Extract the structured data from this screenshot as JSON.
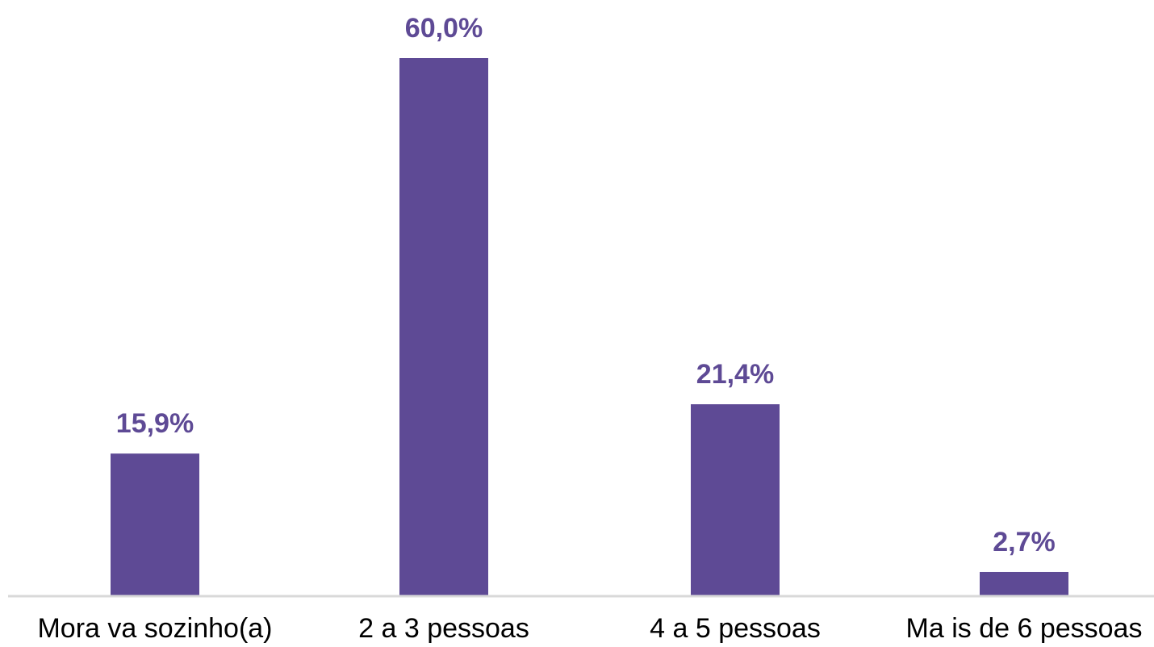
{
  "chart_data": {
    "type": "bar",
    "categories": [
      "Mora va sozinho(a)",
      "2 a 3 pessoas",
      "4 a 5 pessoas",
      "Ma is de 6 pessoas"
    ],
    "values": [
      15.9,
      60.0,
      21.4,
      2.7
    ],
    "value_labels": [
      "15,9%",
      "60,0%",
      "21,4%",
      "2,7%"
    ],
    "unit": "%",
    "ylim": [
      0,
      60.0
    ],
    "grid": false,
    "legend": "none",
    "colors": {
      "bar": "#5E4A95",
      "label": "#5E4A95",
      "axis": "#D9D9D9",
      "category_text": "#000000"
    }
  }
}
